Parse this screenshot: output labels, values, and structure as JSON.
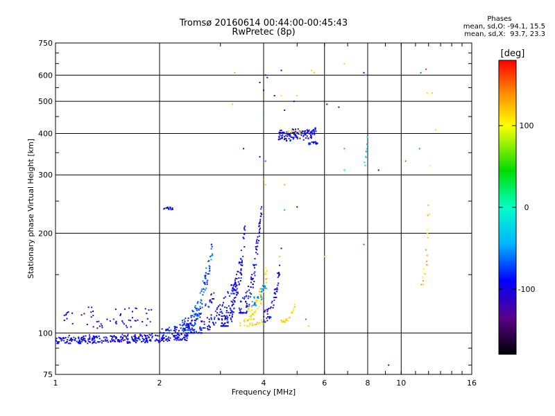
{
  "header": {
    "title_line1": "Tromsø 20160614 00:44:00-00:45:43",
    "title_line2": "RwPretec (8p)"
  },
  "phases": {
    "heading": "Phases",
    "line_o": "mean, sd,O: -94.1, 15.5",
    "line_x": "mean, sd,X:  93.7, 23.3"
  },
  "colorbar": {
    "title": "[deg]",
    "range": [
      -180,
      180
    ],
    "ticks": [
      100,
      0,
      -100
    ],
    "tick_labels": [
      "100",
      "0",
      "-100"
    ]
  },
  "chart_data": {
    "type": "scatter",
    "title": "Tromsø 20160614 00:44:00-00:45:43",
    "subtitle": "RwPretec (8p)",
    "xlabel": "Frequency [MHz]",
    "ylabel": "Stationary phase Virtual Height [km]",
    "xscale": "log",
    "yscale": "log",
    "xlim": [
      1,
      16
    ],
    "ylim": [
      75,
      750
    ],
    "xticks": [
      1,
      2,
      4,
      6,
      8,
      10,
      16
    ],
    "xtick_labels": [
      "1",
      "2",
      "4",
      "6",
      "8",
      "10",
      "16"
    ],
    "yticks": [
      75,
      100,
      200,
      300,
      400,
      500,
      600,
      750
    ],
    "ytick_labels": [
      "75",
      "100",
      "200",
      "300",
      "400",
      "500",
      "600",
      "750"
    ],
    "grid": true,
    "color_by": "phase (deg)",
    "clusters": [
      {
        "f": [
          1.0,
          2.45
        ],
        "h": [
          93,
          100
        ],
        "phase": -95,
        "n": 320,
        "rise": 0.3
      },
      {
        "f": [
          1.0,
          1.9
        ],
        "h": [
          103,
          120
        ],
        "phase": -95,
        "n": 60,
        "rise": 0.0
      },
      {
        "f": [
          2.0,
          2.9
        ],
        "h": [
          100,
          132
        ],
        "phase": -90,
        "n": 90,
        "rise": 1.0
      },
      {
        "f": [
          2.3,
          2.85
        ],
        "h": [
          102,
          185
        ],
        "phase": -70,
        "n": 110,
        "rise": 1.0
      },
      {
        "f": [
          2.4,
          3.5
        ],
        "h": [
          100,
          160
        ],
        "phase": -95,
        "n": 130,
        "rise": 1.0
      },
      {
        "f": [
          3.0,
          3.55
        ],
        "h": [
          105,
          210
        ],
        "phase": -92,
        "n": 110,
        "rise": 1.0
      },
      {
        "f": [
          3.4,
          3.95
        ],
        "h": [
          115,
          240
        ],
        "phase": -95,
        "n": 110,
        "rise": 1.0
      },
      {
        "f": [
          3.6,
          4.1
        ],
        "h": [
          110,
          160
        ],
        "phase": 110,
        "n": 60,
        "rise": 0.8
      },
      {
        "f": [
          3.7,
          4.1
        ],
        "h": [
          120,
          150
        ],
        "phase": -50,
        "n": 30,
        "rise": 0.8
      },
      {
        "f": [
          4.0,
          4.45
        ],
        "h": [
          108,
          160
        ],
        "phase": -95,
        "n": 50,
        "rise": 0.8
      },
      {
        "f": [
          4.5,
          4.95
        ],
        "h": [
          108,
          122
        ],
        "phase": 115,
        "n": 25,
        "rise": 1.0
      },
      {
        "f": [
          3.4,
          4.0
        ],
        "h": [
          104,
          110
        ],
        "phase": 115,
        "n": 25,
        "rise": 0.0
      },
      {
        "f": [
          2.05,
          2.2
        ],
        "h": [
          235,
          240
        ],
        "phase": -95,
        "n": 14,
        "rise": 0.0
      },
      {
        "f": [
          4.4,
          5.7
        ],
        "h": [
          380,
          420
        ],
        "phase": -95,
        "n": 130,
        "rise": 0.3
      },
      {
        "f": [
          4.7,
          5.2
        ],
        "h": [
          400,
          410
        ],
        "phase": 120,
        "n": 12,
        "rise": 0.0
      },
      {
        "f": [
          5.4,
          5.75
        ],
        "h": [
          370,
          378
        ],
        "phase": -95,
        "n": 15,
        "rise": 0.0
      },
      {
        "f": [
          11.4,
          12.3
        ],
        "h": [
          140,
          420
        ],
        "phase": 120,
        "n": 18,
        "rise": 1.0
      },
      {
        "f": [
          7.8,
          8.0
        ],
        "h": [
          320,
          400
        ],
        "phase": -20,
        "n": 10,
        "rise": 1.0
      }
    ],
    "points": [
      {
        "f": 3.3,
        "h": 610,
        "phase": 130
      },
      {
        "f": 3.25,
        "h": 490,
        "phase": 120
      },
      {
        "f": 3.5,
        "h": 360,
        "phase": -95
      },
      {
        "f": 3.9,
        "h": 570,
        "phase": -95
      },
      {
        "f": 4.05,
        "h": 600,
        "phase": -95
      },
      {
        "f": 4.1,
        "h": 590,
        "phase": -95
      },
      {
        "f": 4.0,
        "h": 540,
        "phase": -95
      },
      {
        "f": 4.0,
        "h": 460,
        "phase": -50
      },
      {
        "f": 4.3,
        "h": 520,
        "phase": -95
      },
      {
        "f": 4.5,
        "h": 620,
        "phase": -95
      },
      {
        "f": 4.5,
        "h": 520,
        "phase": 110
      },
      {
        "f": 4.6,
        "h": 470,
        "phase": -95
      },
      {
        "f": 4.9,
        "h": 500,
        "phase": -95
      },
      {
        "f": 5.0,
        "h": 520,
        "phase": 120
      },
      {
        "f": 3.9,
        "h": 340,
        "phase": -95
      },
      {
        "f": 4.05,
        "h": 330,
        "phase": -60
      },
      {
        "f": 4.0,
        "h": 290,
        "phase": 140
      },
      {
        "f": 4.05,
        "h": 280,
        "phase": 120
      },
      {
        "f": 4.6,
        "h": 280,
        "phase": 130
      },
      {
        "f": 4.6,
        "h": 235,
        "phase": -40
      },
      {
        "f": 5.0,
        "h": 240,
        "phase": -95
      },
      {
        "f": 4.5,
        "h": 180,
        "phase": -95
      },
      {
        "f": 4.45,
        "h": 170,
        "phase": 120
      },
      {
        "f": 5.5,
        "h": 620,
        "phase": 115
      },
      {
        "f": 5.6,
        "h": 610,
        "phase": 120
      },
      {
        "f": 6.1,
        "h": 490,
        "phase": -95
      },
      {
        "f": 6.6,
        "h": 480,
        "phase": -95
      },
      {
        "f": 6.85,
        "h": 650,
        "phase": 115
      },
      {
        "f": 6.85,
        "h": 360,
        "phase": 150
      },
      {
        "f": 6.85,
        "h": 310,
        "phase": -20
      },
      {
        "f": 7.8,
        "h": 610,
        "phase": -95
      },
      {
        "f": 7.9,
        "h": 600,
        "phase": -50
      },
      {
        "f": 7.8,
        "h": 185,
        "phase": -60
      },
      {
        "f": 8.6,
        "h": 310,
        "phase": -95
      },
      {
        "f": 9.2,
        "h": 80,
        "phase": -140
      },
      {
        "f": 10.3,
        "h": 330,
        "phase": 160
      },
      {
        "f": 11.4,
        "h": 610,
        "phase": -60
      },
      {
        "f": 11.8,
        "h": 625,
        "phase": 170
      },
      {
        "f": 11.9,
        "h": 530,
        "phase": 110
      },
      {
        "f": 12.3,
        "h": 530,
        "phase": 120
      },
      {
        "f": 12.6,
        "h": 410,
        "phase": 115
      },
      {
        "f": 11.3,
        "h": 360,
        "phase": -50
      },
      {
        "f": 6.0,
        "h": 170,
        "phase": 115
      },
      {
        "f": 5.3,
        "h": 110,
        "phase": 160
      },
      {
        "f": 5.4,
        "h": 105,
        "phase": 120
      }
    ]
  }
}
